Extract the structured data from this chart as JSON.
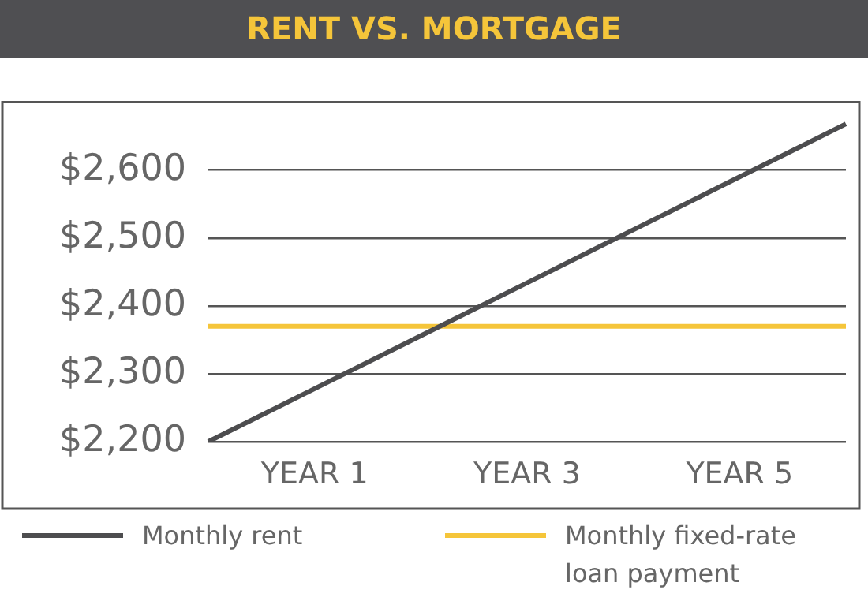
{
  "chart_data": {
    "type": "line",
    "title": "RENT VS. MORTGAGE",
    "categories": [
      null,
      "YEAR 1",
      null,
      "YEAR 3",
      null,
      "YEAR 5",
      null
    ],
    "ylim": [
      2200,
      2700
    ],
    "yticks": [
      {
        "value": 2200,
        "label": "$2,200"
      },
      {
        "value": 2300,
        "label": "$2,300"
      },
      {
        "value": 2400,
        "label": "$2,400"
      },
      {
        "value": 2500,
        "label": "$2,500"
      },
      {
        "value": 2600,
        "label": "$2,600"
      }
    ],
    "grid": "y",
    "legend": "bottom",
    "marker": "none",
    "line_style": "solid",
    "series": [
      {
        "name": "Monthly rent",
        "color": "#4d4d4f",
        "values": [
          2200,
          2278,
          2356,
          2434,
          2512,
          2590,
          2668
        ]
      },
      {
        "name": "Monthly fixed-rate loan payment",
        "color": "#f5c53a",
        "values": [
          2370,
          2370,
          2370,
          2370,
          2370,
          2370,
          2370
        ]
      }
    ]
  }
}
